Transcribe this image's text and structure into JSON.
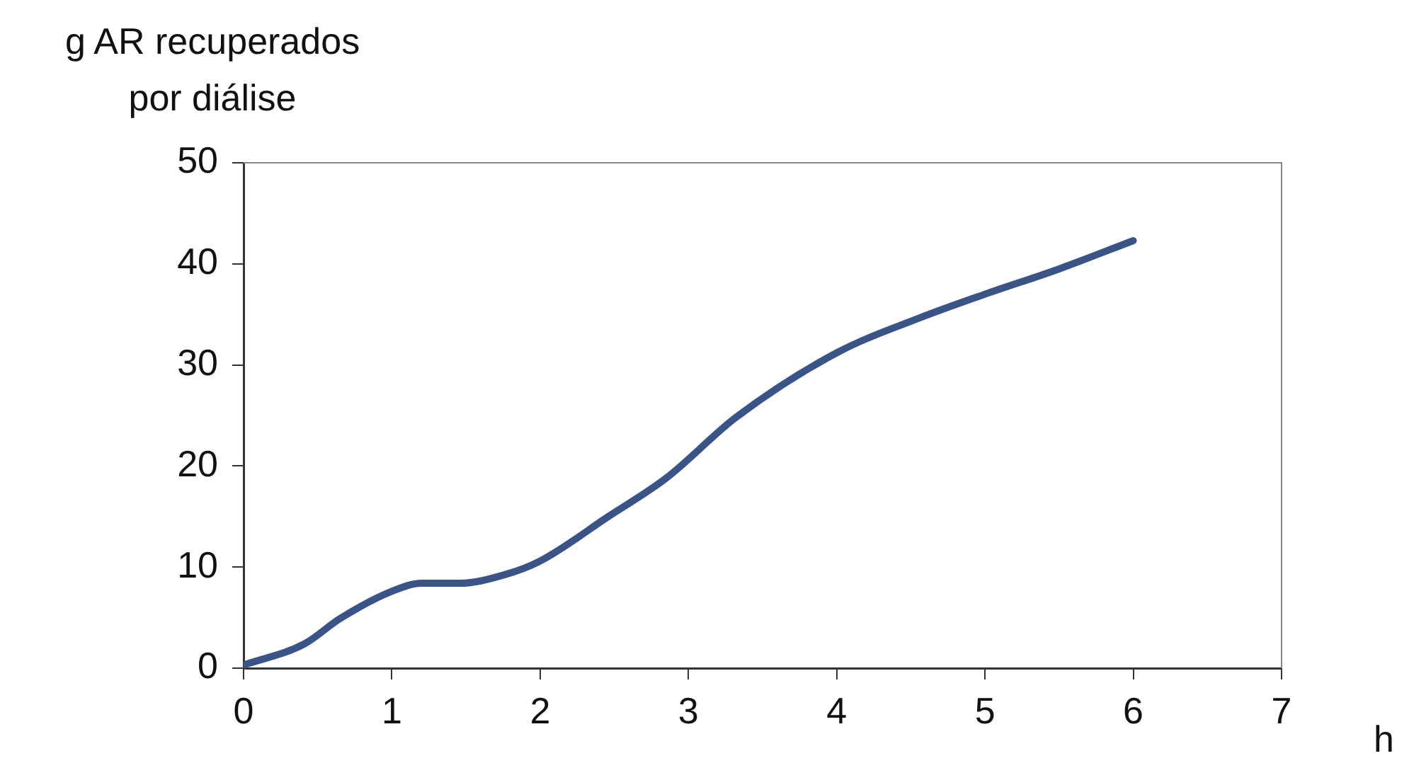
{
  "chart_data": {
    "type": "line",
    "xlabel": "h",
    "ylabel": "g AR recuperados\npor diálise",
    "x": [
      0,
      0.41,
      0.65,
      1.0,
      1.2,
      1.46,
      1.75,
      2.0,
      2.46,
      2.85,
      3.32,
      4.0,
      4.55,
      5.0,
      5.5,
      6.0
    ],
    "series": [
      {
        "color": "#3b5488",
        "values": [
          0.3,
          2.4,
          4.9,
          7.6,
          8.4,
          8.4,
          9.2,
          10.6,
          15,
          18.8,
          24.8,
          31.2,
          34.6,
          37,
          39.5,
          42.3
        ]
      }
    ],
    "xlim": [
      0,
      7
    ],
    "xticks": [
      0,
      1,
      2,
      3,
      4,
      5,
      6,
      7
    ],
    "ylim": [
      0,
      50
    ],
    "yticks": [
      0,
      10,
      20,
      30,
      40,
      50
    ],
    "grid": false,
    "legend": false,
    "marker": "none",
    "line_style": "solid"
  }
}
